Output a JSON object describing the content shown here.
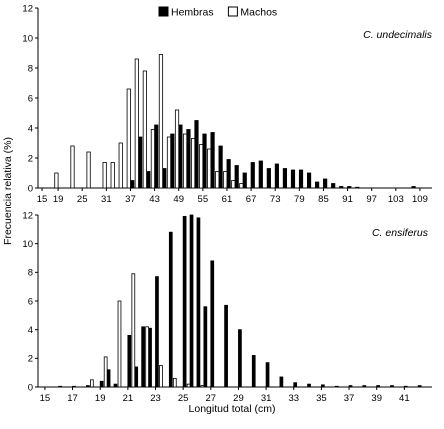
{
  "figure": {
    "legend": [
      {
        "label": "Hembras",
        "color": "#000000"
      },
      {
        "label": "Machos",
        "color": "#ffffff"
      }
    ],
    "ylabel": "Frecuencia relativa (%)",
    "xlabel": "Longitud total (cm)"
  },
  "chart_data": [
    {
      "type": "bar",
      "species": "C. undecimalis",
      "ylim": [
        0,
        12
      ],
      "yticks": [
        0,
        2,
        4,
        6,
        8,
        10,
        12
      ],
      "xlim": [
        14,
        112
      ],
      "xticks": [
        15,
        19,
        25,
        31,
        37,
        43,
        49,
        55,
        61,
        67,
        73,
        79,
        85,
        91,
        97,
        103,
        109
      ],
      "bin_width": 2,
      "series": [
        {
          "name": "Hembras",
          "x": [
            37,
            39,
            41,
            43,
            45,
            47,
            49,
            51,
            53,
            55,
            57,
            59,
            61,
            63,
            65,
            67,
            69,
            71,
            73,
            75,
            77,
            79,
            81,
            83,
            85,
            87,
            89,
            91,
            93,
            107
          ],
          "values": [
            0.5,
            3.4,
            1.1,
            4.2,
            1.3,
            3.6,
            4.2,
            3.9,
            4.5,
            3.6,
            3.7,
            2.8,
            1.9,
            1.5,
            1.0,
            1.7,
            1.8,
            1.3,
            1.6,
            1.3,
            1.2,
            1.2,
            1.0,
            0.4,
            0.6,
            0.3,
            0.1,
            0.1,
            0.05,
            0.1
          ]
        },
        {
          "name": "Machos",
          "x": [
            19,
            21,
            23,
            25,
            27,
            29,
            31,
            33,
            35,
            37,
            39,
            41,
            43,
            45,
            47,
            49,
            51,
            53,
            55,
            57,
            59,
            61,
            63,
            65
          ],
          "values": [
            1.0,
            0.0,
            2.8,
            0.0,
            2.4,
            0.0,
            1.7,
            1.7,
            3.0,
            6.6,
            8.6,
            7.8,
            3.9,
            8.9,
            3.4,
            5.2,
            3.6,
            3.3,
            2.9,
            2.6,
            1.1,
            1.1,
            0.5,
            0.3
          ]
        }
      ]
    },
    {
      "type": "bar",
      "species": "C. ensiferus",
      "ylim": [
        0,
        12
      ],
      "yticks": [
        0,
        2,
        4,
        6,
        8,
        10,
        12
      ],
      "xlim": [
        14.5,
        43
      ],
      "xticks": [
        15,
        17,
        19,
        21,
        23,
        25,
        27,
        29,
        31,
        33,
        35,
        37,
        39,
        41
      ],
      "bin_width": 0.5,
      "series": [
        {
          "name": "Hembras",
          "x": [
            16,
            17,
            18,
            19,
            19.5,
            20,
            21,
            21.5,
            22,
            22.5,
            23,
            24,
            25,
            25.5,
            26,
            26.5,
            27,
            28,
            29,
            30,
            31,
            32,
            33,
            34,
            35,
            36,
            37,
            38,
            39,
            40,
            41,
            42
          ],
          "values": [
            0.05,
            0.05,
            0.1,
            0.4,
            1.2,
            0.2,
            3.6,
            1.4,
            4.2,
            4.1,
            7.7,
            10.8,
            11.9,
            12.0,
            11.8,
            5.6,
            8.8,
            5.7,
            4.0,
            2.2,
            1.7,
            0.7,
            0.3,
            0.2,
            0.15,
            0.05,
            0.1,
            0.1,
            0.1,
            0.1,
            0.05,
            0.1
          ]
        },
        {
          "name": "Machos",
          "x": [
            18.5,
            19.5,
            20.5,
            21.5,
            22.5,
            23.5,
            24.5,
            25.5,
            26.5
          ],
          "values": [
            0.5,
            2.1,
            6.0,
            7.9,
            4.2,
            1.5,
            0.6,
            0.2,
            0.1
          ]
        }
      ]
    }
  ]
}
